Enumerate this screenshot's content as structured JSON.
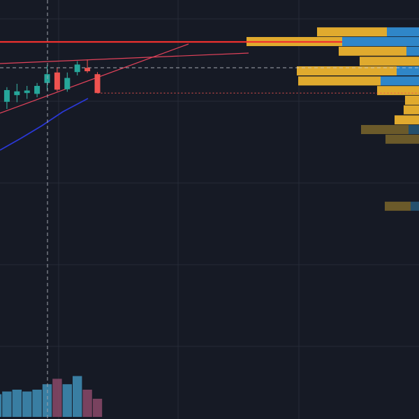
{
  "colors": {
    "background": "#161a25",
    "grid": "#262b38",
    "candle_up": "#26a69a",
    "candle_down": "#ef5350",
    "wick_up": "#3cb6a8",
    "resistance_line": "#f0312e",
    "trendline": "#e2425a",
    "ma_line": "#2a38d6",
    "crosshair": "#a0a4ad",
    "volume_up": "#3f91b8",
    "volume_down": "#8b4a6a",
    "vp_buy": "#e0aa2e",
    "vp_sell": "#2f86c8",
    "vp_dim_buy": "#6b5a2a",
    "vp_dim_sell": "#24506d"
  },
  "chart_data": [
    {
      "type": "candlestick",
      "title": "",
      "xlabel": "",
      "ylabel": "",
      "price_range": [
        0,
        100
      ],
      "candles": [
        {
          "o": 70.0,
          "h": 77.0,
          "l": 63.0,
          "c": 73.5
        },
        {
          "o": 75.7,
          "h": 79.2,
          "l": 74.0,
          "c": 78.5
        },
        {
          "o": 77.3,
          "h": 80.0,
          "l": 75.6,
          "c": 78.2
        },
        {
          "o": 77.8,
          "h": 79.5,
          "l": 76.4,
          "c": 78.4
        },
        {
          "o": 77.6,
          "h": 80.2,
          "l": 76.8,
          "c": 79.5
        },
        {
          "o": 80.2,
          "h": 84.4,
          "l": 78.4,
          "c": 82.3
        },
        {
          "o": 82.7,
          "h": 83.8,
          "l": 78.2,
          "c": 78.6
        },
        {
          "o": 78.7,
          "h": 82.7,
          "l": 78.1,
          "c": 81.4
        },
        {
          "o": 82.8,
          "h": 85.4,
          "l": 82.0,
          "c": 84.6
        },
        {
          "o": 83.8,
          "h": 85.8,
          "l": 82.6,
          "c": 83.0
        },
        {
          "o": 82.3,
          "h": 82.8,
          "l": 77.8,
          "c": 77.8
        }
      ]
    },
    {
      "type": "bar",
      "title": "",
      "series": [
        {
          "values": [
            25,
            28,
            30,
            28,
            30,
            36,
            42,
            36,
            45,
            30,
            20
          ]
        }
      ]
    },
    {
      "type": "bar",
      "orientation": "horizontal",
      "title": "",
      "levels": [
        {
          "y": 92.3,
          "buy": 100,
          "sell": 46
        },
        {
          "y": 90.0,
          "buy": 137,
          "sell": 110
        },
        {
          "y": 87.7,
          "buy": 97,
          "sell": 18
        },
        {
          "y": 85.3,
          "buy": 85,
          "sell": 0
        },
        {
          "y": 83.0,
          "buy": 143,
          "sell": 32
        },
        {
          "y": 80.6,
          "buy": 118,
          "sell": 55
        },
        {
          "y": 78.3,
          "buy": 60,
          "sell": 0
        },
        {
          "y": 76.0,
          "buy": 20,
          "sell": 0
        },
        {
          "y": 73.7,
          "buy": 22,
          "sell": 0
        },
        {
          "y": 71.3,
          "buy": 35,
          "sell": 0
        },
        {
          "y": 69.0,
          "buy": 68,
          "sell": 15,
          "dim": true
        },
        {
          "y": 66.7,
          "buy": 48,
          "sell": 0,
          "dim": true
        },
        {
          "y": 50.7,
          "buy": 37,
          "sell": 12,
          "dim": true
        }
      ]
    }
  ]
}
